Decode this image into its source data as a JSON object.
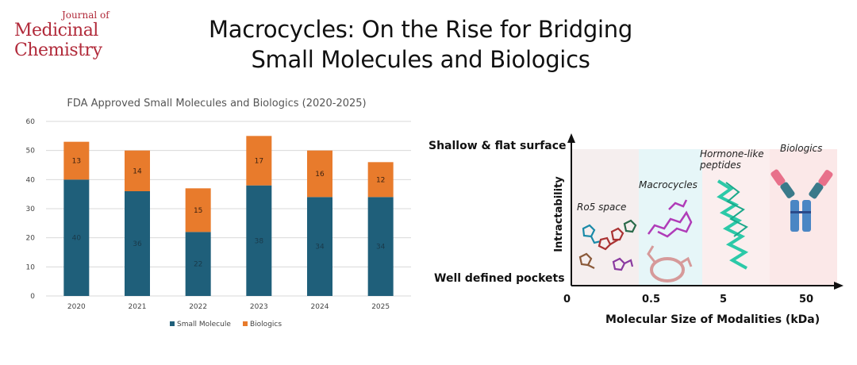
{
  "logo": {
    "line1": "Journal of",
    "line2": "Medicinal",
    "line3": "Chemistry"
  },
  "title": {
    "line1": "Macrocycles: On the Rise for Bridging",
    "line2": "Small Molecules and Biologics"
  },
  "chart_data": {
    "type": "bar",
    "title": "FDA Approved Small Molecules and Biologics (2020-2025)",
    "categories": [
      "2020",
      "2021",
      "2022",
      "2023",
      "2024",
      "2025"
    ],
    "series": [
      {
        "name": "Small Molecule",
        "values": [
          40,
          36,
          22,
          38,
          34,
          34
        ],
        "color": "#1f5f7a"
      },
      {
        "name": "Biologics",
        "values": [
          13,
          14,
          15,
          17,
          16,
          12
        ],
        "color": "#e87b2c"
      }
    ],
    "stacked": true,
    "ylim": [
      0,
      60
    ],
    "yticks": [
      0,
      10,
      20,
      30,
      40,
      50,
      60
    ],
    "grid": true,
    "legend": "bottom"
  },
  "diagram": {
    "y_axis_label": "Intractability",
    "top_label": "Shallow & flat surface",
    "bottom_label": "Well defined pockets",
    "x_axis_label": "Molecular Size of Modalities (kDa)",
    "x_ticks": [
      "0",
      "0.5",
      "5",
      "50"
    ],
    "zones": [
      {
        "label": "Ro5 space",
        "color": "#f5eeee"
      },
      {
        "label": "Macrocycles",
        "color": "#e6f6f8"
      },
      {
        "label": "Hormone-like peptides",
        "color": "#fbecec"
      },
      {
        "label": "Biologics",
        "color": "#fbecec"
      }
    ]
  }
}
